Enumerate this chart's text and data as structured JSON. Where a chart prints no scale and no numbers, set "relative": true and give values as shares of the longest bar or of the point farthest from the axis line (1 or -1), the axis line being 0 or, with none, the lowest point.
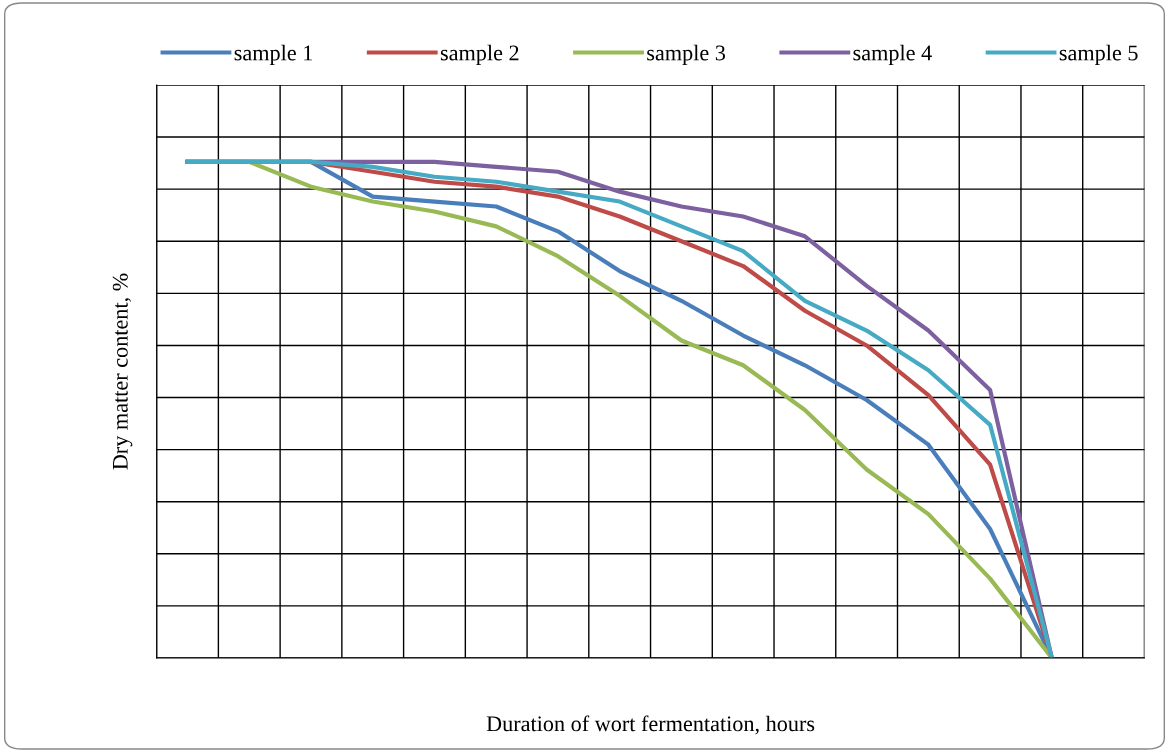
{
  "chart_data": {
    "type": "line",
    "relative": true,
    "xlabel": "Duration of wort fermentation, hours",
    "ylabel": "Dry matter content, %",
    "categories": [
      null,
      null,
      null,
      null,
      null,
      null,
      null,
      null,
      null,
      null,
      null,
      null,
      null,
      null,
      null
    ],
    "series": [
      {
        "name": "sample 1",
        "color": "#4a7ebb",
        "values": [
          1,
          1,
          1,
          0.93,
          0.92,
          0.91,
          0.86,
          0.78,
          0.72,
          0.65,
          0.59,
          0.52,
          0.43,
          0.26,
          0
        ]
      },
      {
        "name": "sample 2",
        "color": "#be4b48",
        "values": [
          1,
          1,
          1,
          0.98,
          0.96,
          0.95,
          0.93,
          0.89,
          0.84,
          0.79,
          0.7,
          0.63,
          0.53,
          0.39,
          0
        ]
      },
      {
        "name": "sample 3",
        "color": "#98b954",
        "values": [
          1,
          1,
          0.95,
          0.92,
          0.9,
          0.87,
          0.81,
          0.73,
          0.64,
          0.59,
          0.5,
          0.38,
          0.29,
          0.16,
          0
        ]
      },
      {
        "name": "sample 4",
        "color": "#7d60a0",
        "values": [
          1,
          1,
          1,
          1,
          1,
          0.99,
          0.98,
          0.94,
          0.91,
          0.89,
          0.85,
          0.75,
          0.66,
          0.54,
          0
        ]
      },
      {
        "name": "sample 5",
        "color": "#46aac5",
        "values": [
          1,
          1,
          1,
          0.99,
          0.97,
          0.96,
          0.94,
          0.92,
          0.87,
          0.82,
          0.72,
          0.66,
          0.58,
          0.47,
          0
        ]
      }
    ],
    "grid": true,
    "legend": "top",
    "tick_labels": false
  }
}
